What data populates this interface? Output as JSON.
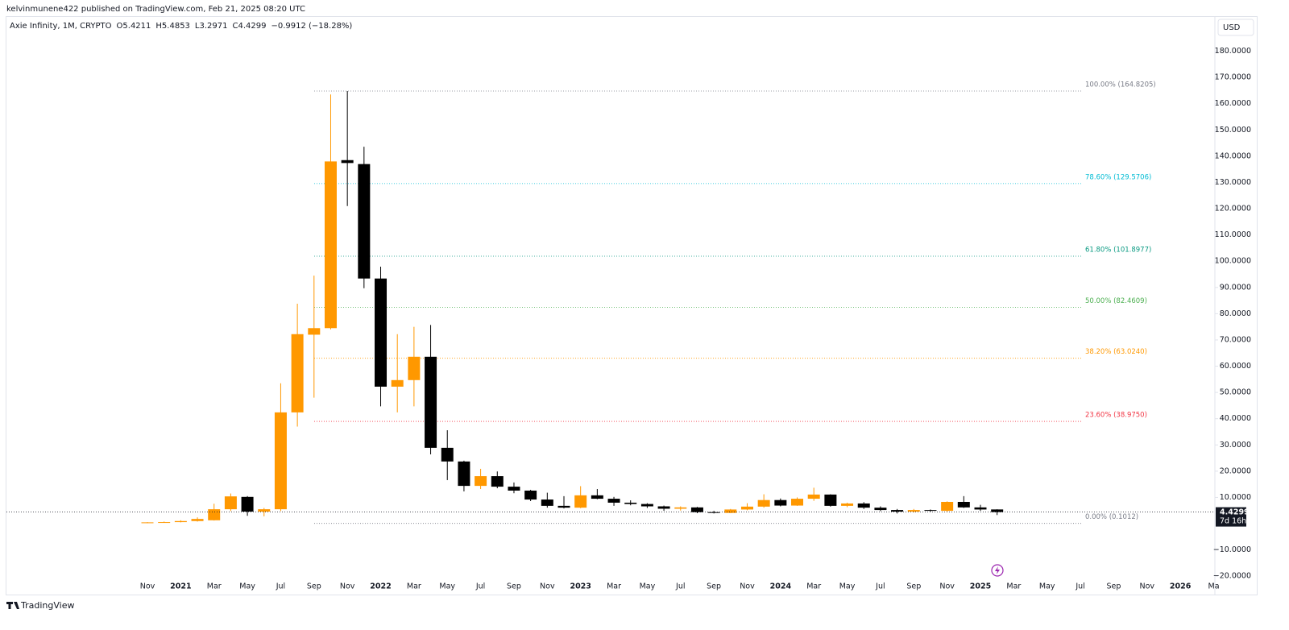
{
  "header": {
    "published": "kelvinmunene422 published on TradingView.com, Feb 21, 2025 08:20 UTC"
  },
  "chart_data": {
    "type": "candlestick",
    "title": "Axie Infinity, 1M, CRYPTO",
    "legend": [
      "O5.4211",
      "H5.4853",
      "L3.2971",
      "C4.4299",
      "−0.9912 (−18.28%)"
    ],
    "currency": "USD",
    "categories": [
      "Nov",
      null,
      "2021",
      null,
      "Mar",
      null,
      "May",
      null,
      "Jul",
      null,
      "Sep",
      null,
      "Nov",
      null,
      "2022",
      null,
      "Mar",
      null,
      "May",
      null,
      "Jul",
      null,
      "Sep",
      null,
      "Nov",
      null,
      "2023",
      null,
      "Mar",
      null,
      "May",
      null,
      "Jul",
      null,
      "Sep",
      null,
      "Nov",
      null,
      "2024",
      null,
      "Mar",
      null,
      "May",
      null,
      "Jul",
      null,
      "Sep",
      null,
      "Nov",
      null,
      "2025",
      null,
      "Mar",
      null,
      "May",
      null,
      "Jul",
      null,
      "Sep",
      null,
      "Nov",
      null,
      "2026",
      null,
      "Ma"
    ],
    "open": [
      0.3,
      0.5,
      0.6,
      1.0,
      1.3,
      5.5,
      10.2,
      4.6,
      5.5,
      42.4,
      72,
      74.5,
      138.5,
      137,
      93.4,
      52.2,
      54.7,
      63.6,
      28.9,
      23.7,
      14.4,
      18.1,
      14.1,
      12.6,
      9.2,
      6.8,
      6.1,
      10.8,
      9.5,
      8,
      7.5,
      6.6,
      5.7,
      6.2,
      4.4,
      4.1,
      5.4,
      6.5,
      9.0,
      6.9,
      9.5,
      11.1,
      6.8,
      7.7,
      6.1,
      5.2,
      4.6,
      5.2,
      4.9,
      8.3,
      6.2,
      5.4211,
      null,
      null,
      null,
      null,
      null,
      null,
      null,
      null,
      null,
      null,
      null,
      null,
      null
    ],
    "high": [
      0.6,
      0.8,
      1.3,
      2.4,
      7.6,
      11.5,
      10.5,
      6,
      53.5,
      83.8,
      94.5,
      163.5,
      164.8205,
      143.6,
      97.9,
      72.2,
      75,
      75.7,
      35.6,
      24,
      20.9,
      19.9,
      15.7,
      12.9,
      11.8,
      10.5,
      14.3,
      13.2,
      10.2,
      8.9,
      7.8,
      6.9,
      6.6,
      6.4,
      4.9,
      5.6,
      7.8,
      11.2,
      9.6,
      10,
      13.7,
      11.2,
      8,
      8.2,
      6.6,
      5.6,
      5.6,
      5.4,
      8.5,
      10.5,
      7.2,
      5.4853,
      null,
      null,
      null,
      null,
      null,
      null,
      null,
      null,
      null,
      null,
      null,
      null,
      null
    ],
    "low": [
      0.2,
      0.4,
      0.5,
      0.8,
      1.2,
      4.8,
      3.0,
      2.8,
      4.8,
      37,
      48,
      74,
      121,
      89.7,
      44.7,
      42.4,
      44.7,
      26.4,
      16.6,
      12.3,
      13.2,
      13.5,
      11.6,
      8.6,
      6.1,
      5.8,
      5.9,
      9.3,
      6.8,
      7,
      6,
      4.9,
      5,
      4.0,
      3.9,
      4,
      5.1,
      6.1,
      6.6,
      6.8,
      8.7,
      6.5,
      6.3,
      5.6,
      4.8,
      3.9,
      4.3,
      4.6,
      4.5,
      6,
      4.9,
      3.2971,
      null,
      null,
      null,
      null,
      null,
      null,
      null,
      null,
      null,
      null,
      null,
      null,
      null
    ],
    "close": [
      0.5,
      0.6,
      1.0,
      1.8,
      5.5,
      10.4,
      4.6,
      5.5,
      42.4,
      72.2,
      74.5,
      138,
      137.4,
      93.4,
      52.2,
      54.7,
      63.6,
      28.9,
      23.7,
      14.4,
      18.1,
      14.1,
      12.6,
      9.2,
      6.8,
      6.1,
      10.8,
      9.5,
      8,
      7.5,
      6.6,
      5.7,
      6.2,
      4.4,
      4.1,
      5.4,
      6.5,
      9.0,
      6.9,
      9.5,
      11.1,
      6.8,
      7.7,
      6.1,
      5.2,
      4.6,
      5.2,
      4.9,
      8.3,
      6.2,
      5.4,
      4.4299,
      null,
      null,
      null,
      null,
      null,
      null,
      null,
      null,
      null,
      null,
      null,
      null,
      null
    ],
    "up_color": "#ff9800",
    "down_color": "#000000",
    "ylim": [
      -27,
      186
    ],
    "yticks": [
      {
        "value": 180,
        "label": "180.0000"
      },
      {
        "value": 170,
        "label": "170.0000"
      },
      {
        "value": 160,
        "label": "160.0000"
      },
      {
        "value": 150,
        "label": "150.0000"
      },
      {
        "value": 140,
        "label": "140.0000"
      },
      {
        "value": 130,
        "label": "130.0000"
      },
      {
        "value": 120,
        "label": "120.0000"
      },
      {
        "value": 110,
        "label": "110.0000"
      },
      {
        "value": 100,
        "label": "100.0000"
      },
      {
        "value": 90,
        "label": "90.0000"
      },
      {
        "value": 80,
        "label": "80.0000"
      },
      {
        "value": 70,
        "label": "70.0000"
      },
      {
        "value": 60,
        "label": "60.0000"
      },
      {
        "value": 50,
        "label": "50.0000"
      },
      {
        "value": 40,
        "label": "40.0000"
      },
      {
        "value": 30,
        "label": "30.0000"
      },
      {
        "value": 20,
        "label": "20.0000"
      },
      {
        "value": 10,
        "label": "10.0000"
      },
      {
        "value": -10,
        "label": "−10.0000"
      },
      {
        "value": -20,
        "label": "−20.0000"
      }
    ],
    "fib_levels": [
      {
        "value": 164.8205,
        "label": "100.00% (164.8205)",
        "color": "#787b86"
      },
      {
        "value": 129.5706,
        "label": "78.60% (129.5706)",
        "color": "#00bcd4"
      },
      {
        "value": 101.8977,
        "label": "61.80% (101.8977)",
        "color": "#089981"
      },
      {
        "value": 82.4609,
        "label": "50.00% (82.4609)",
        "color": "#4caf50"
      },
      {
        "value": 63.024,
        "label": "38.20% (63.0240)",
        "color": "#ff9800"
      },
      {
        "value": 38.975,
        "label": "23.60% (38.9750)",
        "color": "#f23645"
      },
      {
        "value": 0.1012,
        "label": "0.00% (0.1012)",
        "color": "#787b86"
      }
    ],
    "last_price": {
      "value": 4.4299,
      "label": "4.4299"
    },
    "countdown": "7d 16h"
  },
  "footer": {
    "brand": "TradingView"
  }
}
